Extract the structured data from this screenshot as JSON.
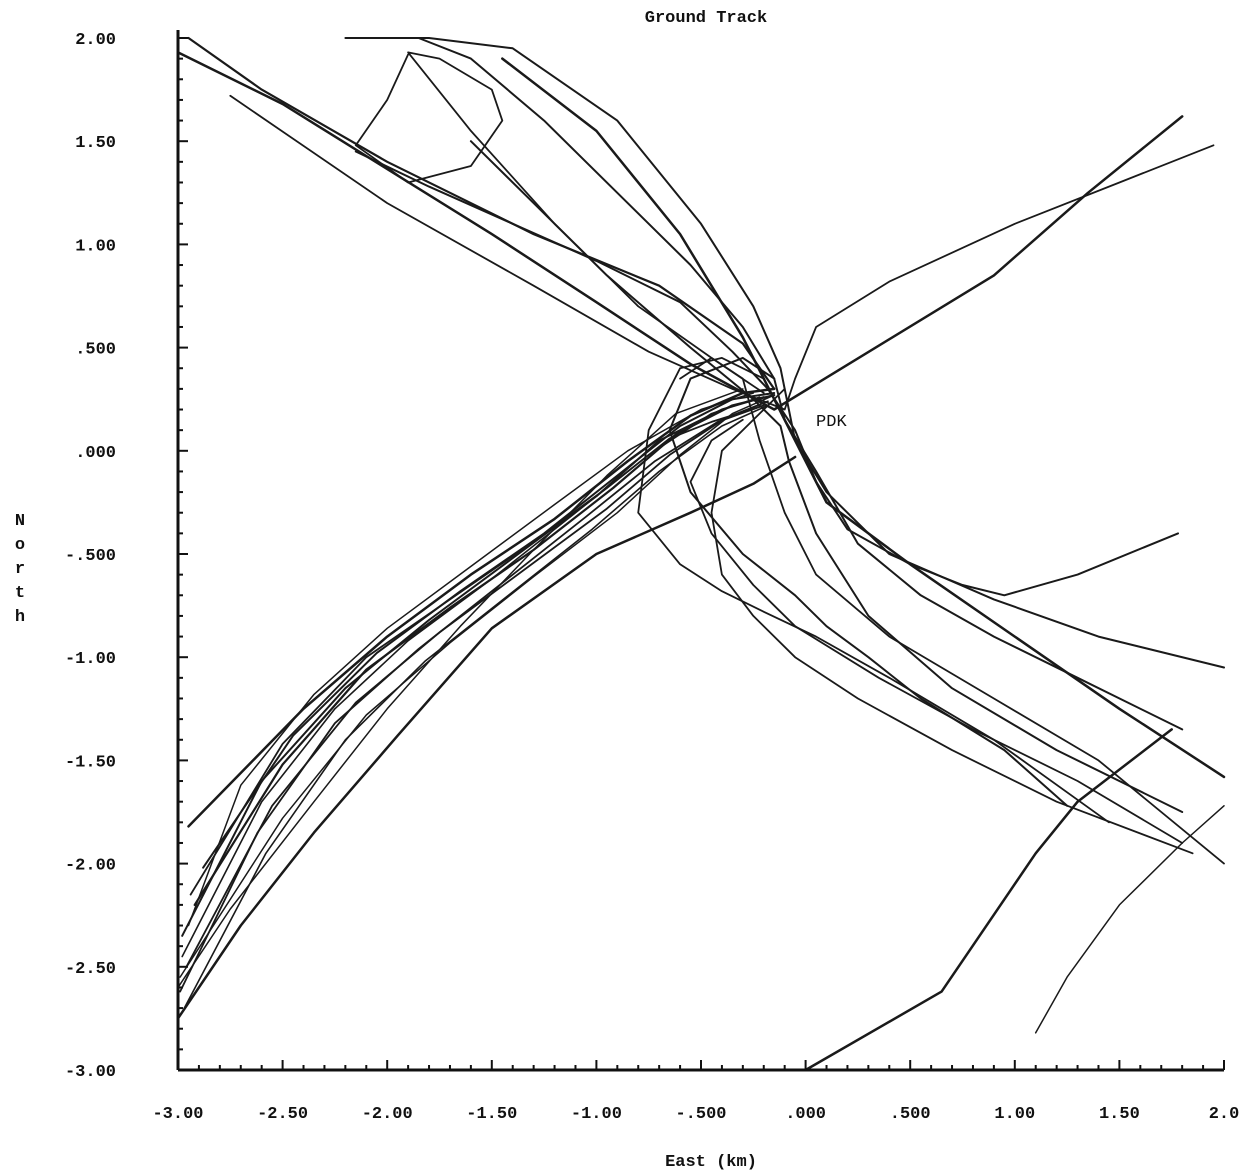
{
  "chart_data": {
    "type": "line",
    "title": "Ground Track",
    "xlabel": "East (km)",
    "ylabel": "North",
    "xlim": [
      -3.0,
      2.0
    ],
    "ylim": [
      -3.0,
      2.0
    ],
    "x_ticks": [
      -3.0,
      -2.5,
      -2.0,
      -1.5,
      -1.0,
      -0.5,
      0.0,
      0.5,
      1.0,
      1.5,
      2.0
    ],
    "x_tick_labels": [
      "-3.00",
      "-2.50",
      "-2.00",
      "-1.50",
      "-1.00",
      "-.500",
      ".000",
      ".500",
      "1.00",
      "1.50",
      "2.0"
    ],
    "y_ticks": [
      2.0,
      1.5,
      1.0,
      0.5,
      0.0,
      -0.5,
      -1.0,
      -1.5,
      -2.0,
      -2.5,
      -3.0
    ],
    "y_tick_labels": [
      "2.00",
      "1.50",
      "1.00",
      ".500",
      ".000",
      "-.500",
      "-1.00",
      "-1.50",
      "-2.00",
      "-2.50",
      "-3.00"
    ],
    "grid": false,
    "line_color": "#1a1a1a",
    "annotations": [
      {
        "text": "PDK",
        "x": 0.05,
        "y": 0.12
      }
    ],
    "series": [
      {
        "width": 2.5,
        "x": [
          -2.95,
          -2.4,
          -2.0,
          -1.6,
          -1.2,
          -0.85,
          -0.55,
          -0.3,
          -0.15
        ],
        "y": [
          -1.82,
          -1.25,
          -0.9,
          -0.6,
          -0.33,
          -0.05,
          0.17,
          0.28,
          0.3
        ]
      },
      {
        "width": 2.0,
        "x": [
          -2.88,
          -2.45,
          -2.05,
          -1.65,
          -1.25,
          -0.9,
          -0.6,
          -0.35,
          -0.15
        ],
        "y": [
          -2.02,
          -1.38,
          -0.98,
          -0.68,
          -0.4,
          -0.12,
          0.12,
          0.25,
          0.28
        ]
      },
      {
        "width": 2.0,
        "x": [
          -2.98,
          -2.6,
          -2.2,
          -1.8,
          -1.4,
          -1.0,
          -0.7,
          -0.4,
          -0.2
        ],
        "y": [
          -2.35,
          -1.6,
          -1.15,
          -0.82,
          -0.52,
          -0.22,
          0.05,
          0.2,
          0.26
        ]
      },
      {
        "width": 1.8,
        "x": [
          -2.96,
          -2.55,
          -2.15,
          -1.75,
          -1.35,
          -0.95,
          -0.65,
          -0.38,
          -0.18
        ],
        "y": [
          -2.5,
          -1.72,
          -1.22,
          -0.88,
          -0.58,
          -0.28,
          -0.02,
          0.16,
          0.24
        ]
      },
      {
        "width": 1.8,
        "x": [
          -2.99,
          -2.62,
          -2.25,
          -1.85,
          -1.45,
          -1.05,
          -0.72,
          -0.42,
          -0.2
        ],
        "y": [
          -2.62,
          -1.85,
          -1.32,
          -0.96,
          -0.64,
          -0.32,
          -0.05,
          0.14,
          0.22
        ]
      },
      {
        "width": 1.6,
        "x": [
          -2.97,
          -2.58,
          -2.2,
          -1.82,
          -1.42,
          -1.02,
          -0.7,
          -0.4,
          -0.18
        ],
        "y": [
          -2.7,
          -1.95,
          -1.4,
          -1.02,
          -0.7,
          -0.38,
          -0.1,
          0.12,
          0.22
        ]
      },
      {
        "width": 1.6,
        "x": [
          -2.98,
          -2.6,
          -2.25,
          -1.9,
          -1.5,
          -1.1,
          -0.75,
          -0.45,
          -0.22
        ],
        "y": [
          -2.45,
          -1.7,
          -1.25,
          -0.92,
          -0.62,
          -0.3,
          -0.02,
          0.18,
          0.26
        ]
      },
      {
        "width": 1.5,
        "x": [
          -2.95,
          -2.7,
          -2.35,
          -2.0,
          -1.6,
          -1.2,
          -0.85,
          -0.5,
          -0.25
        ],
        "y": [
          -2.3,
          -1.62,
          -1.18,
          -0.86,
          -0.56,
          -0.26,
          0.0,
          0.2,
          0.28
        ]
      },
      {
        "width": 1.5,
        "x": [
          -2.99,
          -2.5,
          -2.1,
          -1.7,
          -1.3,
          -0.9,
          -0.6,
          -0.35,
          -0.15
        ],
        "y": [
          -2.55,
          -1.78,
          -1.28,
          -0.93,
          -0.61,
          -0.3,
          -0.02,
          0.18,
          0.27
        ]
      },
      {
        "width": 2.2,
        "x": [
          -2.92,
          -2.5,
          -2.1,
          -1.7,
          -1.3,
          -0.92,
          -0.62,
          -0.35,
          -0.15
        ],
        "y": [
          -2.2,
          -1.52,
          -1.06,
          -0.76,
          -0.48,
          -0.18,
          0.08,
          0.22,
          0.27
        ]
      },
      {
        "width": 2.5,
        "x": [
          -3.0,
          -2.7,
          -2.35,
          -1.95,
          -1.5,
          -1.0,
          -0.55,
          -0.25,
          -0.05
        ],
        "y": [
          -2.75,
          -2.3,
          -1.85,
          -1.38,
          -0.86,
          -0.5,
          -0.3,
          -0.16,
          -0.03
        ]
      },
      {
        "width": 1.8,
        "x": [
          -2.94,
          -2.5,
          -2.1,
          -1.7,
          -1.3,
          -0.95,
          -0.65,
          -0.45,
          -0.2
        ],
        "y": [
          -2.15,
          -1.42,
          -1.0,
          -0.72,
          -0.44,
          -0.18,
          0.06,
          0.14,
          0.22
        ]
      },
      {
        "width": 1.5,
        "x": [
          -3.0,
          -2.75,
          -2.35,
          -2.0,
          -1.65,
          -1.3,
          -0.95,
          -0.62,
          -0.3
        ],
        "y": [
          -2.6,
          -2.22,
          -1.7,
          -1.25,
          -0.85,
          -0.48,
          -0.12,
          0.18,
          0.3
        ]
      },
      {
        "width": 2.5,
        "x": [
          -3.0,
          -2.5,
          -1.5,
          -1.0,
          -0.55,
          -0.15,
          0.9,
          1.35,
          1.8
        ],
        "y": [
          1.93,
          1.68,
          1.05,
          0.72,
          0.42,
          0.2,
          0.85,
          1.25,
          1.62
        ]
      },
      {
        "width": 1.8,
        "x": [
          -2.75,
          -2.0,
          -1.3,
          -0.75,
          -0.35,
          -0.1,
          -0.05,
          0.05,
          0.4,
          1.0,
          1.5,
          1.95
        ],
        "y": [
          1.72,
          1.2,
          0.8,
          0.48,
          0.3,
          0.2,
          0.35,
          0.6,
          0.82,
          1.1,
          1.3,
          1.48
        ]
      },
      {
        "width": 2.2,
        "x": [
          -2.95,
          -2.6,
          -2.0,
          -1.3,
          -0.7,
          -0.3,
          -0.15
        ],
        "y": [
          2.0,
          1.75,
          1.4,
          1.05,
          0.8,
          0.52,
          0.3
        ]
      },
      {
        "width": 2.0,
        "x": [
          -2.2,
          -1.8,
          -1.4,
          -0.9,
          -0.5,
          -0.25,
          -0.12,
          -0.05,
          0.1,
          0.4,
          0.9,
          1.4,
          2.0
        ],
        "y": [
          2.0,
          2.0,
          1.95,
          1.6,
          1.1,
          0.7,
          0.4,
          0.05,
          -0.2,
          -0.5,
          -0.72,
          -0.9,
          -1.05
        ]
      },
      {
        "width": 2.0,
        "x": [
          -1.6,
          -1.3,
          -0.95,
          -0.55,
          -0.25,
          -0.12,
          -0.08,
          0.05,
          0.3,
          0.7,
          1.2,
          1.8
        ],
        "y": [
          1.5,
          1.2,
          0.85,
          0.5,
          0.25,
          0.12,
          -0.05,
          -0.4,
          -0.8,
          -1.15,
          -1.45,
          -1.75
        ]
      },
      {
        "width": 2.5,
        "x": [
          -1.45,
          -1.0,
          -0.6,
          -0.3,
          -0.15,
          -0.05,
          0.1,
          0.5,
          1.0,
          1.5,
          2.0
        ],
        "y": [
          1.9,
          1.55,
          1.05,
          0.55,
          0.25,
          0.05,
          -0.25,
          -0.55,
          -0.9,
          -1.25,
          -1.58
        ]
      },
      {
        "width": 2.0,
        "x": [
          -1.85,
          -1.6,
          -1.25,
          -0.9,
          -0.55,
          -0.3,
          -0.15,
          -0.1,
          0.05,
          0.25,
          0.55,
          0.9,
          1.3,
          1.8
        ],
        "y": [
          2.0,
          1.9,
          1.6,
          1.25,
          0.9,
          0.6,
          0.35,
          0.15,
          -0.1,
          -0.45,
          -0.7,
          -0.9,
          -1.1,
          -1.35
        ]
      },
      {
        "width": 1.8,
        "x": [
          -1.9,
          -2.0,
          -2.15,
          -1.9,
          -1.6,
          -1.45,
          -1.5,
          -1.75,
          -1.9,
          -1.6,
          -1.2,
          -0.8,
          -0.45,
          -0.2
        ],
        "y": [
          1.92,
          1.7,
          1.48,
          1.3,
          1.38,
          1.6,
          1.75,
          1.9,
          1.93,
          1.55,
          1.1,
          0.7,
          0.45,
          0.28
        ]
      },
      {
        "width": 2.0,
        "x": [
          -2.15,
          -1.8,
          -1.4,
          -1.0,
          -0.6,
          -0.35,
          -0.18,
          -0.05,
          0.05,
          0.2,
          0.5,
          0.75,
          0.95,
          1.3,
          1.78
        ],
        "y": [
          1.45,
          1.28,
          1.1,
          0.92,
          0.72,
          0.48,
          0.3,
          0.1,
          -0.15,
          -0.38,
          -0.55,
          -0.65,
          -0.7,
          -0.6,
          -0.4
        ]
      },
      {
        "width": 2.0,
        "x": [
          -0.15,
          -0.3,
          -0.55,
          -0.65,
          -0.55,
          -0.3,
          -0.05,
          0.1,
          0.3,
          0.55,
          0.95,
          1.25
        ],
        "y": [
          0.35,
          0.45,
          0.35,
          0.1,
          -0.2,
          -0.5,
          -0.7,
          -0.85,
          -1.0,
          -1.2,
          -1.45,
          -1.72
        ]
      },
      {
        "width": 1.8,
        "x": [
          -0.2,
          -0.4,
          -0.6,
          -0.75,
          -0.8,
          -0.6,
          -0.4,
          -0.2,
          0.05,
          0.4,
          0.9,
          1.45
        ],
        "y": [
          0.35,
          0.45,
          0.4,
          0.1,
          -0.3,
          -0.55,
          -0.68,
          -0.78,
          -0.9,
          -1.1,
          -1.4,
          -1.8
        ]
      },
      {
        "width": 1.8,
        "x": [
          -0.1,
          -0.2,
          -0.4,
          -0.45,
          -0.4,
          -0.25,
          -0.05,
          0.25,
          0.7,
          1.2,
          1.85
        ],
        "y": [
          0.3,
          0.2,
          0.0,
          -0.3,
          -0.6,
          -0.8,
          -1.0,
          -1.2,
          -1.45,
          -1.7,
          -1.95
        ]
      },
      {
        "width": 1.8,
        "x": [
          -0.3,
          -0.45,
          -0.55,
          -0.45,
          -0.25,
          -0.05,
          0.35,
          0.8,
          1.3,
          1.8
        ],
        "y": [
          0.15,
          0.05,
          -0.15,
          -0.4,
          -0.65,
          -0.85,
          -1.1,
          -1.35,
          -1.6,
          -1.9
        ]
      },
      {
        "width": 1.8,
        "x": [
          -0.6,
          -0.45,
          -0.3,
          -0.22,
          -0.1,
          0.05,
          0.4,
          0.9,
          1.4,
          2.0
        ],
        "y": [
          0.35,
          0.45,
          0.35,
          0.05,
          -0.3,
          -0.6,
          -0.9,
          -1.2,
          -1.5,
          -2.0
        ]
      },
      {
        "width": 2.5,
        "x": [
          0.0,
          0.65,
          1.1,
          1.3,
          1.75
        ],
        "y": [
          -3.0,
          -2.62,
          -1.95,
          -1.7,
          -1.35
        ]
      },
      {
        "width": 1.5,
        "x": [
          1.1,
          1.25,
          1.5,
          1.8,
          2.0
        ],
        "y": [
          -2.82,
          -2.55,
          -2.2,
          -1.9,
          -1.72
        ]
      }
    ]
  }
}
